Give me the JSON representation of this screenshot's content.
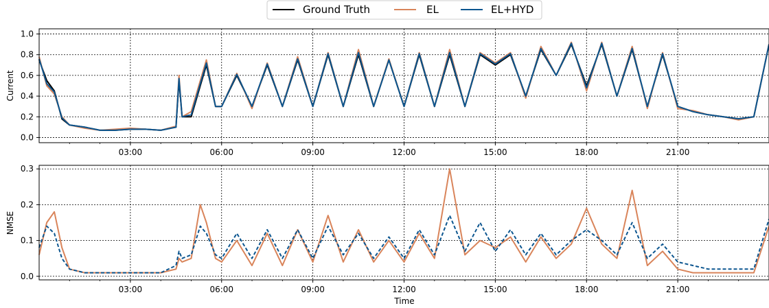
{
  "colors": {
    "ground_truth": "#000000",
    "el": "#D9845A",
    "el_hyd": "#0B558F",
    "grid": "#000000"
  },
  "legend": {
    "placement": "top-center",
    "entries": [
      "Ground Truth",
      "EL",
      "EL+HYD"
    ]
  },
  "chart_data": [
    {
      "type": "line",
      "title": "",
      "xlabel": "",
      "ylabel": "Current",
      "ylim": [
        -0.05,
        1.05
      ],
      "yticks": [
        "0.0",
        "0.2",
        "0.4",
        "0.6",
        "0.8",
        "1.0"
      ],
      "xlim_hours": [
        0.0,
        24.0
      ],
      "xticks": [
        "03:00",
        "06:00",
        "09:00",
        "12:00",
        "15:00",
        "18:00",
        "21:00"
      ],
      "grid": true,
      "series": [
        {
          "name": "Ground Truth",
          "style": "solid"
        },
        {
          "name": "EL",
          "style": "solid"
        },
        {
          "name": "EL+HYD",
          "style": "solid"
        }
      ],
      "x_hours": [
        0.0,
        0.25,
        0.5,
        0.75,
        1.0,
        1.5,
        2.0,
        2.5,
        3.0,
        3.5,
        4.0,
        4.5,
        4.6,
        4.7,
        5.0,
        5.3,
        5.5,
        5.8,
        6.0,
        6.5,
        7.0,
        7.5,
        8.0,
        8.5,
        9.0,
        9.5,
        10.0,
        10.5,
        11.0,
        11.5,
        12.0,
        12.5,
        13.0,
        13.5,
        14.0,
        14.5,
        15.0,
        15.5,
        16.0,
        16.5,
        17.0,
        17.5,
        18.0,
        18.5,
        19.0,
        19.5,
        20.0,
        20.5,
        21.0,
        21.5,
        22.0,
        22.5,
        23.0,
        23.5,
        24.0
      ],
      "ground_truth": [
        0.75,
        0.55,
        0.45,
        0.18,
        0.12,
        0.1,
        0.07,
        0.07,
        0.08,
        0.08,
        0.07,
        0.1,
        0.55,
        0.2,
        0.2,
        0.5,
        0.7,
        0.3,
        0.3,
        0.6,
        0.3,
        0.7,
        0.3,
        0.75,
        0.3,
        0.8,
        0.3,
        0.8,
        0.3,
        0.75,
        0.3,
        0.8,
        0.3,
        0.8,
        0.3,
        0.8,
        0.7,
        0.8,
        0.4,
        0.85,
        0.6,
        0.9,
        0.5,
        0.9,
        0.4,
        0.85,
        0.3,
        0.8,
        0.3,
        0.25,
        0.22,
        0.2,
        0.18,
        0.2,
        0.9
      ],
      "el": [
        0.78,
        0.5,
        0.42,
        0.2,
        0.12,
        0.09,
        0.07,
        0.08,
        0.09,
        0.08,
        0.07,
        0.11,
        0.6,
        0.2,
        0.25,
        0.55,
        0.75,
        0.3,
        0.3,
        0.62,
        0.28,
        0.72,
        0.3,
        0.78,
        0.3,
        0.82,
        0.3,
        0.85,
        0.3,
        0.76,
        0.3,
        0.82,
        0.3,
        0.85,
        0.3,
        0.82,
        0.72,
        0.82,
        0.38,
        0.88,
        0.6,
        0.92,
        0.45,
        0.92,
        0.4,
        0.88,
        0.28,
        0.82,
        0.28,
        0.26,
        0.22,
        0.2,
        0.17,
        0.2,
        0.9
      ],
      "el_hyd": [
        0.76,
        0.52,
        0.44,
        0.19,
        0.12,
        0.1,
        0.07,
        0.07,
        0.08,
        0.08,
        0.07,
        0.1,
        0.57,
        0.2,
        0.22,
        0.52,
        0.72,
        0.3,
        0.3,
        0.61,
        0.3,
        0.71,
        0.3,
        0.76,
        0.3,
        0.81,
        0.3,
        0.82,
        0.3,
        0.75,
        0.3,
        0.81,
        0.3,
        0.82,
        0.3,
        0.81,
        0.71,
        0.81,
        0.4,
        0.86,
        0.6,
        0.91,
        0.48,
        0.91,
        0.4,
        0.86,
        0.3,
        0.81,
        0.3,
        0.25,
        0.22,
        0.2,
        0.18,
        0.2,
        0.9
      ]
    },
    {
      "type": "line",
      "title": "",
      "xlabel": "Time",
      "ylabel": "NMSE",
      "ylim": [
        -0.01,
        0.31
      ],
      "yticks": [
        "0.0",
        "0.1",
        "0.2",
        "0.3"
      ],
      "xlim_hours": [
        0.0,
        24.0
      ],
      "xticks": [
        "03:00",
        "06:00",
        "09:00",
        "12:00",
        "15:00",
        "18:00",
        "21:00"
      ],
      "grid": true,
      "series": [
        {
          "name": "EL",
          "style": "solid"
        },
        {
          "name": "EL+HYD",
          "style": "dashed"
        }
      ],
      "x_hours": [
        0.0,
        0.25,
        0.5,
        0.75,
        1.0,
        1.5,
        2.0,
        2.5,
        3.0,
        3.5,
        4.0,
        4.5,
        4.6,
        4.7,
        5.0,
        5.3,
        5.5,
        5.8,
        6.0,
        6.5,
        7.0,
        7.5,
        8.0,
        8.5,
        9.0,
        9.5,
        10.0,
        10.5,
        11.0,
        11.5,
        12.0,
        12.5,
        13.0,
        13.5,
        14.0,
        14.5,
        15.0,
        15.5,
        16.0,
        16.5,
        17.0,
        17.5,
        18.0,
        18.5,
        19.0,
        19.5,
        20.0,
        20.5,
        21.0,
        21.5,
        22.0,
        22.5,
        23.0,
        23.5,
        24.0
      ],
      "el": [
        0.06,
        0.15,
        0.18,
        0.08,
        0.02,
        0.01,
        0.01,
        0.01,
        0.01,
        0.01,
        0.01,
        0.02,
        0.05,
        0.04,
        0.05,
        0.2,
        0.15,
        0.05,
        0.04,
        0.1,
        0.03,
        0.12,
        0.03,
        0.13,
        0.04,
        0.17,
        0.04,
        0.13,
        0.04,
        0.1,
        0.04,
        0.12,
        0.05,
        0.3,
        0.06,
        0.1,
        0.08,
        0.11,
        0.04,
        0.11,
        0.05,
        0.09,
        0.19,
        0.09,
        0.05,
        0.24,
        0.03,
        0.07,
        0.02,
        0.01,
        0.01,
        0.01,
        0.01,
        0.01,
        0.14
      ],
      "el_hyd": [
        0.08,
        0.14,
        0.12,
        0.05,
        0.02,
        0.01,
        0.01,
        0.01,
        0.01,
        0.01,
        0.01,
        0.03,
        0.07,
        0.05,
        0.06,
        0.14,
        0.12,
        0.06,
        0.05,
        0.12,
        0.05,
        0.13,
        0.05,
        0.13,
        0.05,
        0.14,
        0.06,
        0.12,
        0.05,
        0.11,
        0.05,
        0.13,
        0.06,
        0.17,
        0.07,
        0.15,
        0.07,
        0.13,
        0.06,
        0.12,
        0.06,
        0.1,
        0.13,
        0.1,
        0.06,
        0.15,
        0.05,
        0.09,
        0.04,
        0.03,
        0.02,
        0.02,
        0.02,
        0.02,
        0.16
      ]
    }
  ]
}
